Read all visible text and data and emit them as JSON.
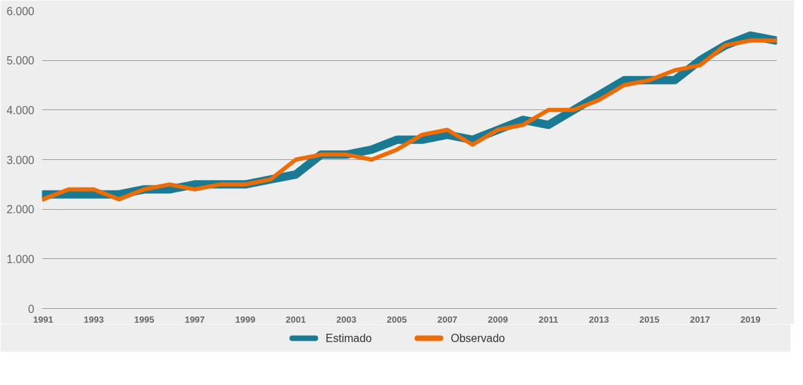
{
  "chart_data": {
    "type": "line",
    "x": [
      1991,
      1992,
      1993,
      1994,
      1995,
      1996,
      1997,
      1998,
      1999,
      2000,
      2001,
      2002,
      2003,
      2004,
      2005,
      2006,
      2007,
      2008,
      2009,
      2010,
      2011,
      2012,
      2013,
      2014,
      2015,
      2016,
      2017,
      2018,
      2019,
      2020
    ],
    "series": [
      {
        "name": "Estimado",
        "color": "#1b7a93",
        "values": [
          2300,
          2300,
          2300,
          2300,
          2400,
          2400,
          2500,
          2500,
          2500,
          2600,
          2700,
          3100,
          3100,
          3200,
          3400,
          3400,
          3500,
          3400,
          3600,
          3800,
          3700,
          4000,
          4300,
          4600,
          4600,
          4600,
          5000,
          5300,
          5500,
          5400
        ]
      },
      {
        "name": "Observado",
        "color": "#ec6d07",
        "values": [
          2200,
          2400,
          2400,
          2200,
          2400,
          2500,
          2400,
          2500,
          2500,
          2600,
          3000,
          3100,
          3100,
          3000,
          3200,
          3500,
          3600,
          3300,
          3600,
          3700,
          4000,
          4000,
          4200,
          4500,
          4600,
          4800,
          4900,
          5300,
          5400,
          5400
        ]
      }
    ],
    "xlim": [
      1990.95,
      2020.05
    ],
    "xticks": [
      1991,
      1993,
      1995,
      1997,
      1999,
      2001,
      2003,
      2005,
      2007,
      2009,
      2011,
      2013,
      2015,
      2017,
      2019
    ],
    "ylim": [
      0,
      6000
    ],
    "yticks": [
      {
        "value": 0,
        "label": "0"
      },
      {
        "value": 1000,
        "label": "1.000"
      },
      {
        "value": 2000,
        "label": "2.000"
      },
      {
        "value": 3000,
        "label": "3.000"
      },
      {
        "value": 4000,
        "label": "4.000"
      },
      {
        "value": 5000,
        "label": "5.000"
      },
      {
        "value": 6000,
        "label": "6.000"
      }
    ],
    "grid": "y",
    "legend": "bottom",
    "line_style": "solid"
  }
}
